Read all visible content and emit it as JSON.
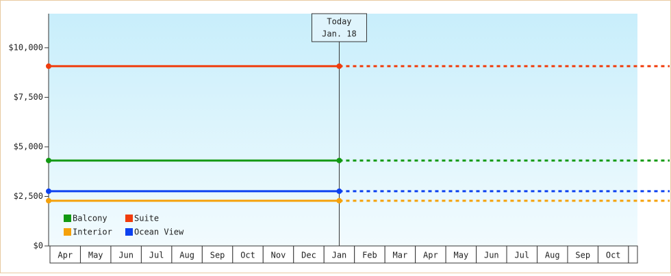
{
  "chart_data": {
    "type": "line",
    "categories": [
      "Apr",
      "May",
      "Jun",
      "Jul",
      "Aug",
      "Sep",
      "Oct",
      "Nov",
      "Dec",
      "Jan",
      "Feb",
      "Mar",
      "Apr",
      "May",
      "Jun",
      "Jul",
      "Aug",
      "Sep",
      "Oct"
    ],
    "series": [
      {
        "name": "Balcony",
        "color": "#129912",
        "value": 4310
      },
      {
        "name": "Suite",
        "color": "#f03c0c",
        "value": 9070
      },
      {
        "name": "Interior",
        "color": "#f5a10a",
        "value": 2280
      },
      {
        "name": "Ocean View",
        "color": "#0c41f0",
        "value": 2760
      }
    ],
    "annotation": {
      "lines": [
        "Today",
        "Jan. 18"
      ],
      "category": "Jan"
    },
    "ylim": [
      0,
      11720
    ],
    "yticks": [
      {
        "value": 0,
        "label": "$0"
      },
      {
        "value": 2500,
        "label": "$2,500"
      },
      {
        "value": 5000,
        "label": "$5,000"
      },
      {
        "value": 7500,
        "label": "$7,500"
      },
      {
        "value": 10000,
        "label": "$10,000"
      }
    ],
    "legend": "bottom-left"
  }
}
